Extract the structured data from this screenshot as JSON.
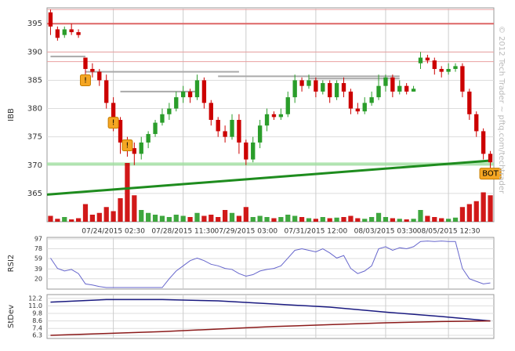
{
  "chart_data": [
    {
      "type": "candlestick",
      "y_label": "IBB",
      "watermark": "© 2012 Tech Trader ~ pftq.com/techtrader",
      "categories": [
        null,
        null,
        null,
        null,
        null,
        null,
        null,
        null,
        null,
        "07/24/2015 02:30",
        null,
        null,
        null,
        null,
        null,
        null,
        null,
        null,
        null,
        "07/28/2015 11:30",
        null,
        null,
        null,
        null,
        null,
        null,
        null,
        null,
        "07/29/2015 03:00",
        null,
        null,
        null,
        null,
        null,
        null,
        null,
        null,
        null,
        "07/31/2015 12:00",
        null,
        null,
        null,
        null,
        null,
        null,
        null,
        null,
        null,
        "08/03/2015 03:30",
        null,
        null,
        null,
        null,
        null,
        null,
        null,
        null,
        "08/05/2015 12:30",
        null,
        null,
        null,
        null,
        null,
        null
      ],
      "open": [
        397,
        394,
        393,
        394,
        393.5,
        389,
        387,
        386.5,
        385,
        381,
        378,
        374,
        373,
        372,
        374,
        375.5,
        377.5,
        379,
        380,
        382,
        383,
        382,
        385,
        381,
        378,
        376,
        375,
        378,
        374,
        371,
        374,
        377,
        379,
        378.5,
        379,
        382,
        385,
        384,
        385,
        383,
        384.5,
        382,
        384.5,
        383,
        380,
        379.5,
        381,
        382,
        384,
        385.5,
        383,
        384,
        383,
        388,
        389,
        388.5,
        387,
        386.5,
        387,
        387.5,
        383,
        379,
        376,
        372
      ],
      "high": [
        397.5,
        394.5,
        394.5,
        395,
        394,
        389,
        388,
        387,
        386,
        382,
        378.5,
        375,
        374,
        375,
        376,
        378,
        380,
        381,
        383,
        384,
        383.5,
        386,
        385.5,
        381.5,
        378.5,
        377,
        379,
        379,
        374.5,
        375,
        378,
        380,
        379.5,
        380,
        383,
        386,
        385.5,
        386,
        385.5,
        385,
        385,
        385,
        385.5,
        383.5,
        381,
        382,
        383,
        386,
        386,
        386,
        385,
        384.5,
        384,
        390,
        389.5,
        389,
        387.5,
        388,
        388,
        388,
        383.5,
        379.5,
        376.5,
        372.5
      ],
      "low": [
        393,
        392,
        392.5,
        393,
        392.5,
        386,
        385.5,
        384,
        380,
        376,
        372,
        371.5,
        370,
        371,
        373,
        375,
        377,
        378,
        379.5,
        381,
        381,
        381.5,
        380,
        377,
        375,
        374,
        374.5,
        372,
        370,
        370.5,
        373,
        376,
        378,
        378,
        378.5,
        381,
        383,
        383.5,
        382,
        382.5,
        381,
        381.5,
        382,
        379,
        379,
        379,
        380.5,
        381.5,
        383,
        382,
        382.5,
        382.5,
        383,
        387,
        388,
        386,
        385.5,
        386,
        386.5,
        382,
        378,
        375,
        371,
        369.5
      ],
      "close": [
        394.5,
        392.5,
        394,
        393.5,
        393,
        387,
        386.5,
        385,
        381,
        378,
        374,
        373,
        372,
        374,
        375.5,
        377.5,
        379,
        380,
        382,
        383,
        382,
        385,
        381,
        378,
        376,
        375,
        378,
        374,
        371,
        374,
        377,
        379,
        378.5,
        379,
        382,
        385,
        384,
        385,
        383,
        384.5,
        382,
        384.5,
        383,
        380,
        379.5,
        381,
        382,
        384,
        385.5,
        383,
        384,
        383,
        383.5,
        389,
        388.5,
        387,
        386.5,
        387,
        387.5,
        383,
        379,
        376,
        372,
        370.5
      ],
      "volume": [
        10,
        5,
        8,
        4,
        6,
        30,
        12,
        15,
        25,
        18,
        40,
        100,
        45,
        20,
        15,
        12,
        10,
        8,
        12,
        10,
        8,
        15,
        10,
        12,
        8,
        20,
        15,
        10,
        25,
        8,
        10,
        8,
        6,
        8,
        12,
        10,
        8,
        6,
        5,
        8,
        6,
        7,
        8,
        10,
        6,
        5,
        8,
        15,
        8,
        6,
        5,
        4,
        5,
        20,
        10,
        8,
        6,
        5,
        7,
        25,
        30,
        35,
        50,
        45
      ],
      "up_color": "#2a9d2a",
      "down_color": "#cc0000",
      "ylim": [
        360,
        397.8
      ],
      "yticks": [
        365,
        370,
        375,
        380,
        385,
        390,
        395
      ],
      "levels": [
        {
          "value": 397.5,
          "color": "#e9a0a0"
        },
        {
          "value": 395,
          "color": "#d66"
        },
        {
          "value": 390,
          "color": "#e9a0a0"
        },
        {
          "value": 388.3,
          "color": "#e9a0a0"
        }
      ],
      "support": {
        "value": 370.2,
        "color": "#9fdf9f"
      },
      "trend": {
        "from": [
          0,
          364.8
        ],
        "to": [
          63,
          370.8
        ],
        "color": "#1e8c1e"
      },
      "segments": [
        {
          "value": 389.2,
          "from": 0,
          "to": 5
        },
        {
          "value": 386.5,
          "from": 5,
          "to": 27
        },
        {
          "value": 383,
          "from": 10,
          "to": 21
        },
        {
          "value": 385.7,
          "from": 24,
          "to": 50
        },
        {
          "value": 385.3,
          "from": 37,
          "to": 50
        }
      ],
      "annotations": [
        {
          "label": "!",
          "index": 5,
          "y": 385
        },
        {
          "label": "!",
          "index": 9,
          "y": 377.5
        },
        {
          "label": "!",
          "index": 11,
          "y": 373.5
        },
        {
          "label": "BOT",
          "index": 63,
          "y": 368.5
        }
      ]
    },
    {
      "type": "line",
      "y_label": "RSI2",
      "color": "#6666cc",
      "values": [
        60,
        40,
        35,
        38,
        30,
        10,
        8,
        5,
        3,
        3,
        3,
        3,
        3,
        3,
        3,
        3,
        3,
        20,
        35,
        45,
        55,
        60,
        55,
        48,
        45,
        40,
        38,
        30,
        25,
        28,
        35,
        38,
        40,
        45,
        60,
        75,
        78,
        75,
        72,
        78,
        70,
        60,
        65,
        40,
        30,
        35,
        45,
        78,
        82,
        75,
        80,
        78,
        82,
        92,
        93,
        92,
        93,
        92,
        92,
        40,
        20,
        15,
        10,
        12
      ],
      "ylim": [
        0,
        100
      ],
      "yticks": [
        20,
        39,
        59,
        78,
        97
      ]
    },
    {
      "type": "line",
      "y_label": "StDev",
      "x": [
        0,
        8,
        16,
        24,
        32,
        40,
        48,
        56,
        63
      ],
      "series": [
        {
          "color": "#1a1a80",
          "values": [
            11.6,
            12.0,
            12.0,
            11.8,
            11.3,
            10.8,
            10.0,
            9.3,
            8.6
          ]
        },
        {
          "color": "#8b1a1a",
          "values": [
            6.3,
            6.6,
            6.9,
            7.3,
            7.7,
            8.0,
            8.3,
            8.5,
            8.6
          ]
        }
      ],
      "ylim": [
        5.8,
        12.8
      ],
      "yticks": [
        6.3,
        7.4,
        8.6,
        9.8,
        {
          "value": 11,
          "label": "11.0"
        },
        12.2
      ]
    }
  ]
}
